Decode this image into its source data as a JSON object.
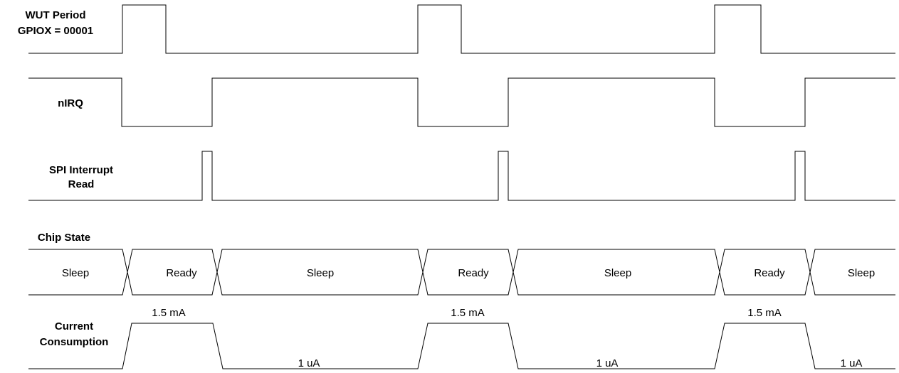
{
  "signals": {
    "wut": {
      "label_line1": "WUT Period",
      "label_line2": "GPIOX = 00001"
    },
    "nirq": {
      "label": "nIRQ"
    },
    "spi": {
      "label_line1": "SPI Interrupt",
      "label_line2": "Read"
    },
    "chip_state": {
      "label": "Chip State"
    },
    "current": {
      "label_line1": "Current",
      "label_line2": "Consumption"
    }
  },
  "chip_states": [
    "Sleep",
    "Ready",
    "Sleep",
    "Ready",
    "Sleep",
    "Ready",
    "Sleep"
  ],
  "current_levels": {
    "high_1": "1.5  mA",
    "high_2": "1.5 mA",
    "high_3": "1.5 mA",
    "low_1": "1 uA",
    "low_2": "1 uA",
    "low_3": "1 uA"
  }
}
